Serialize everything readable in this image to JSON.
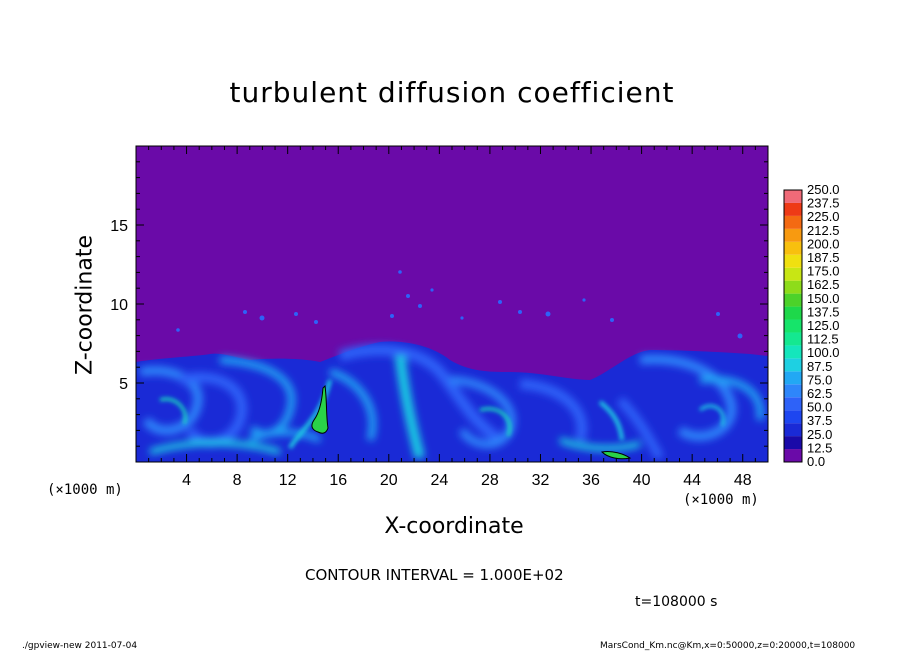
{
  "figure": {
    "title": "turbulent diffusion coefficient",
    "contour_interval": "CONTOUR INTERVAL = 1.000E+02",
    "time_label": "t=108000 s",
    "footer_left": "./gpview-new   2011-07-04",
    "footer_right": "MarsCond_Km.nc@Km,x=0:50000,z=0:20000,t=108000"
  },
  "chart_data": {
    "type": "heatmap",
    "title": "turbulent diffusion coefficient",
    "xlabel": "X-coordinate",
    "ylabel": "Z-coordinate",
    "x_unit": "(×1000 m)",
    "xlim": [
      0,
      50
    ],
    "ylim": [
      0,
      20
    ],
    "x_ticks": [
      4,
      8,
      12,
      16,
      20,
      24,
      28,
      32,
      36,
      40,
      44,
      48
    ],
    "y_ticks": [
      5,
      10,
      15
    ],
    "colorbar": {
      "levels": [
        "0.0",
        "12.5",
        "25.0",
        "37.5",
        "50.0",
        "62.5",
        "75.0",
        "87.5",
        "100.0",
        "112.5",
        "125.0",
        "137.5",
        "150.0",
        "162.5",
        "175.0",
        "187.5",
        "200.0",
        "212.5",
        "225.0",
        "237.5",
        "250.0"
      ],
      "colors": [
        "#6a0aa8",
        "#1a0aa8",
        "#1a2ad6",
        "#1e46f0",
        "#2e62f8",
        "#2e86fa",
        "#22a8f4",
        "#1ed0e2",
        "#14e6bc",
        "#14e890",
        "#16e46a",
        "#1ed84a",
        "#4cd22a",
        "#8edc1a",
        "#c8e614",
        "#f0e010",
        "#f8c00e",
        "#f89a10",
        "#f46a12",
        "#ee3a16",
        "#f06a78"
      ]
    },
    "contour_interval": 100,
    "time_s": 108000,
    "field_description": "background ~0 above ~6.5 km; turbulent layer 12.5–75 below ~6.5 km with isolated cells >100 near x≈14 km and x≈38 km"
  }
}
